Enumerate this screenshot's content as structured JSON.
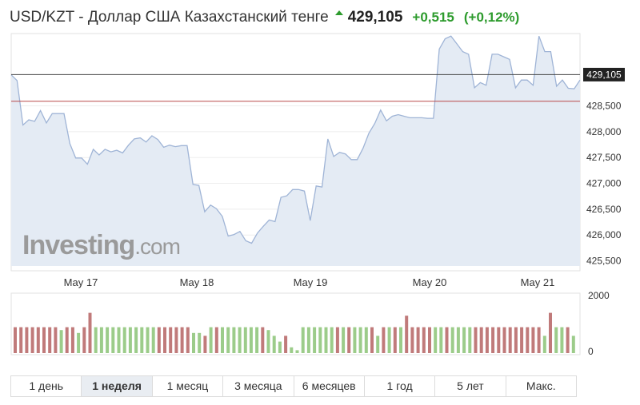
{
  "header": {
    "title": "USD/KZT - Доллар США Казахстанский тенге",
    "price": "429,105",
    "change": "+0,515",
    "change_pct": "(+0,12%)",
    "up_color": "#2d9b2d",
    "up_icon": "up-arrow-icon"
  },
  "watermark": {
    "brand": "Investing",
    "suffix": ".com"
  },
  "tabs": [
    {
      "label": "1 день",
      "active": false
    },
    {
      "label": "1 неделя",
      "active": true
    },
    {
      "label": "1 месяц",
      "active": false
    },
    {
      "label": "3 месяца",
      "active": false
    },
    {
      "label": "6 месяцев",
      "active": false
    },
    {
      "label": "1 год",
      "active": false
    },
    {
      "label": "5 лет",
      "active": false
    },
    {
      "label": "Макс.",
      "active": false
    }
  ],
  "chart_data": {
    "type": "area",
    "y_ticks": [
      "425,500",
      "426,000",
      "426,500",
      "427,000",
      "427,500",
      "428,000",
      "428,500"
    ],
    "ylim": [
      425.4,
      429.9
    ],
    "x_tick_labels": [
      "May 17",
      "May 18",
      "May 19",
      "May 20",
      "May 21"
    ],
    "current_price_label": "429,105",
    "current_price": 429.105,
    "previous_close": 428.59,
    "line_color": "#9fb4d6",
    "area_color": "#e4ebf4",
    "current_line_color": "#444444",
    "prev_close_line_color": "#b94a4a",
    "values": [
      429.1,
      428.99,
      428.13,
      428.23,
      428.2,
      428.41,
      428.17,
      428.35,
      428.35,
      428.35,
      427.77,
      427.49,
      427.49,
      427.37,
      427.66,
      427.55,
      427.66,
      427.61,
      427.64,
      427.59,
      427.74,
      427.86,
      427.88,
      427.8,
      427.92,
      427.85,
      427.7,
      427.74,
      427.71,
      427.73,
      427.73,
      426.98,
      426.96,
      426.45,
      426.58,
      426.51,
      426.36,
      425.98,
      426.01,
      426.07,
      425.89,
      425.84,
      426.04,
      426.17,
      426.29,
      426.26,
      426.73,
      426.76,
      426.88,
      426.88,
      426.85,
      426.28,
      426.95,
      426.93,
      427.86,
      427.52,
      427.6,
      427.57,
      427.46,
      427.46,
      427.68,
      427.97,
      428.16,
      428.42,
      428.21,
      428.3,
      428.33,
      428.3,
      428.27,
      428.27,
      428.27,
      428.26,
      428.26,
      429.6,
      429.8,
      429.85,
      429.7,
      429.55,
      429.5,
      428.85,
      428.95,
      428.9,
      429.5,
      429.5,
      429.45,
      429.4,
      428.85,
      429.0,
      429.0,
      428.9,
      429.85,
      429.55,
      429.55,
      428.88,
      429.0,
      428.84,
      428.83,
      429.0
    ],
    "volume_ticks": [
      "2000",
      "0"
    ],
    "volume_max": 2000,
    "volume_up_color": "#9ccc8a",
    "volume_down_color": "#c07a7a",
    "volumes": [
      900,
      900,
      900,
      900,
      900,
      900,
      900,
      900,
      800,
      900,
      900,
      700,
      900,
      1400,
      900,
      900,
      900,
      900,
      900,
      900,
      900,
      900,
      900,
      900,
      900,
      900,
      900,
      900,
      900,
      900,
      900,
      700,
      700,
      600,
      900,
      900,
      900,
      900,
      900,
      900,
      900,
      900,
      900,
      900,
      800,
      600,
      400,
      600,
      200,
      100,
      900,
      900,
      900,
      900,
      900,
      900,
      900,
      900,
      900,
      900,
      900,
      900,
      900,
      600,
      900,
      900,
      900,
      900,
      1300,
      900,
      900,
      900,
      900,
      900,
      900,
      900,
      900,
      900,
      900,
      900,
      900,
      900,
      900,
      900,
      900,
      900,
      900,
      900,
      900,
      900,
      900,
      900,
      600,
      1400,
      900,
      900,
      900,
      600
    ],
    "volume_dir": [
      "d",
      "d",
      "d",
      "d",
      "d",
      "d",
      "d",
      "d",
      "u",
      "d",
      "d",
      "u",
      "d",
      "d",
      "u",
      "u",
      "u",
      "u",
      "u",
      "u",
      "u",
      "u",
      "u",
      "u",
      "u",
      "d",
      "d",
      "d",
      "d",
      "d",
      "d",
      "u",
      "u",
      "d",
      "u",
      "d",
      "u",
      "u",
      "u",
      "u",
      "u",
      "u",
      "u",
      "d",
      "u",
      "u",
      "u",
      "d",
      "u",
      "u",
      "u",
      "u",
      "u",
      "u",
      "u",
      "u",
      "d",
      "u",
      "d",
      "u",
      "u",
      "u",
      "d",
      "u",
      "d",
      "u",
      "d",
      "u",
      "d",
      "d",
      "d",
      "d",
      "d",
      "u",
      "u",
      "d",
      "u",
      "u",
      "u",
      "u",
      "d",
      "d",
      "d",
      "d",
      "d",
      "d",
      "d",
      "d",
      "d",
      "d",
      "d",
      "d",
      "u",
      "d",
      "u",
      "u",
      "d",
      "u"
    ]
  }
}
